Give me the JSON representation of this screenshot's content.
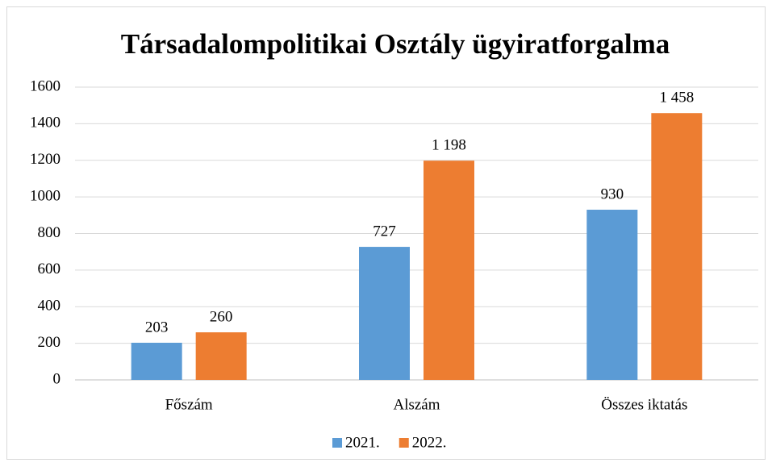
{
  "chart_data": {
    "type": "bar",
    "title": "Társadalompolitikai Osztály ügyiratforgalma",
    "categories": [
      "Főszám",
      "Alszám",
      "Összes iktatás"
    ],
    "series": [
      {
        "name": "2021.",
        "color": "#5b9bd5",
        "values": [
          203,
          727,
          930
        ],
        "value_labels": [
          "203",
          "727",
          "930"
        ]
      },
      {
        "name": "2022.",
        "color": "#ed7d31",
        "values": [
          260,
          1198,
          1458
        ],
        "value_labels": [
          "260",
          "1 198",
          "1 458"
        ]
      }
    ],
    "ylim": [
      0,
      1600
    ],
    "yticks": [
      0,
      200,
      400,
      600,
      800,
      1000,
      1200,
      1400,
      1600
    ],
    "grid": true,
    "legend": "bottom"
  }
}
